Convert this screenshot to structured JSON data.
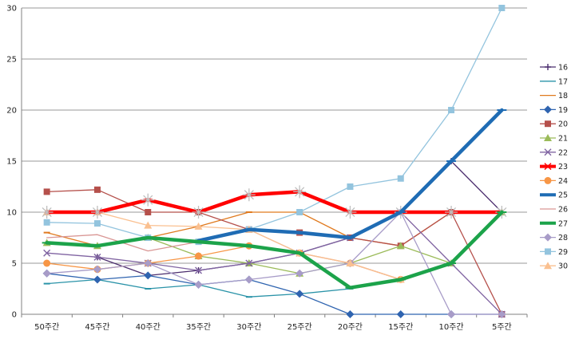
{
  "chart_data": {
    "type": "line",
    "title": "",
    "xlabel": "",
    "ylabel": "",
    "ylim": [
      0,
      30
    ],
    "yticks": [
      0,
      5,
      10,
      15,
      20,
      25,
      30
    ],
    "grid": "horizontal",
    "legend_position": "right",
    "categories": [
      "50주간",
      "45주간",
      "40주간",
      "35주간",
      "30주간",
      "25주간",
      "20주간",
      "15주간",
      "10주간",
      "5주간"
    ],
    "series": [
      {
        "name": "16",
        "color": "#4b2d6e",
        "marker": "plus",
        "bold": false,
        "values": [
          null,
          5.6,
          3.8,
          4.3,
          5,
          6,
          7.5,
          10,
          15,
          10
        ]
      },
      {
        "name": "17",
        "color": "#2a93a8",
        "marker": "dash",
        "bold": false,
        "values": [
          3,
          3.4,
          2.5,
          2.9,
          1.7,
          2,
          2.5,
          3.4,
          5,
          10
        ]
      },
      {
        "name": "18",
        "color": "#e07a1f",
        "marker": "dash",
        "bold": false,
        "values": [
          8,
          6.7,
          7.5,
          8.6,
          10,
          10,
          7.5,
          6.7,
          10,
          10
        ]
      },
      {
        "name": "19",
        "color": "#2f64b0",
        "marker": "diamond",
        "bold": false,
        "values": [
          4,
          3.4,
          3.8,
          2.9,
          3.4,
          2,
          0,
          0,
          0,
          0
        ]
      },
      {
        "name": "20",
        "color": "#b5504b",
        "marker": "square",
        "bold": false,
        "values": [
          12,
          12.2,
          10,
          10,
          8.3,
          8,
          7.5,
          6.7,
          10,
          0
        ]
      },
      {
        "name": "21",
        "color": "#9bbb59",
        "marker": "triangle",
        "bold": false,
        "values": [
          7,
          6.7,
          7.5,
          5.7,
          5,
          4,
          5,
          6.7,
          5,
          10
        ]
      },
      {
        "name": "22",
        "color": "#8064a2",
        "marker": "x",
        "bold": false,
        "values": [
          6,
          5.6,
          5,
          4.3,
          5,
          6,
          7.5,
          10,
          5,
          0
        ]
      },
      {
        "name": "23",
        "color": "#ff0000",
        "marker": "star",
        "bold": true,
        "values": [
          10,
          10,
          11.2,
          10,
          11.7,
          12,
          10,
          10,
          10,
          10
        ]
      },
      {
        "name": "24",
        "color": "#f79646",
        "marker": "circle",
        "bold": false,
        "values": [
          5,
          4.4,
          5,
          5.7,
          6.7,
          6,
          5,
          3.4,
          null,
          null
        ]
      },
      {
        "name": "25",
        "color": "#1f6cb4",
        "marker": "dash",
        "bold": true,
        "values": [
          null,
          null,
          null,
          7.2,
          8.3,
          8,
          7.5,
          10,
          15,
          20
        ]
      },
      {
        "name": "26",
        "color": "#d99694",
        "marker": "none",
        "bold": false,
        "values": [
          7.5,
          7.8,
          6.2,
          7.1,
          8.3,
          6,
          5,
          3.4,
          null,
          0
        ]
      },
      {
        "name": "27",
        "color": "#1ca34a",
        "marker": "dash",
        "bold": true,
        "values": [
          7,
          6.7,
          7.5,
          7.1,
          6.7,
          6,
          2.6,
          3.4,
          5,
          10
        ]
      },
      {
        "name": "28",
        "color": "#a89cc8",
        "marker": "diamond",
        "bold": false,
        "values": [
          4,
          4.4,
          5,
          2.9,
          3.4,
          4,
          5,
          10,
          0,
          0
        ]
      },
      {
        "name": "29",
        "color": "#93c4de",
        "marker": "square",
        "bold": false,
        "values": [
          9,
          8.9,
          7.5,
          7.1,
          8.3,
          10,
          12.5,
          13.3,
          20,
          30
        ]
      },
      {
        "name": "30",
        "color": "#fac090",
        "marker": "triangle",
        "bold": false,
        "values": [
          10,
          10,
          8.7,
          8.6,
          8.3,
          6,
          5,
          3.4,
          null,
          null
        ]
      }
    ]
  }
}
